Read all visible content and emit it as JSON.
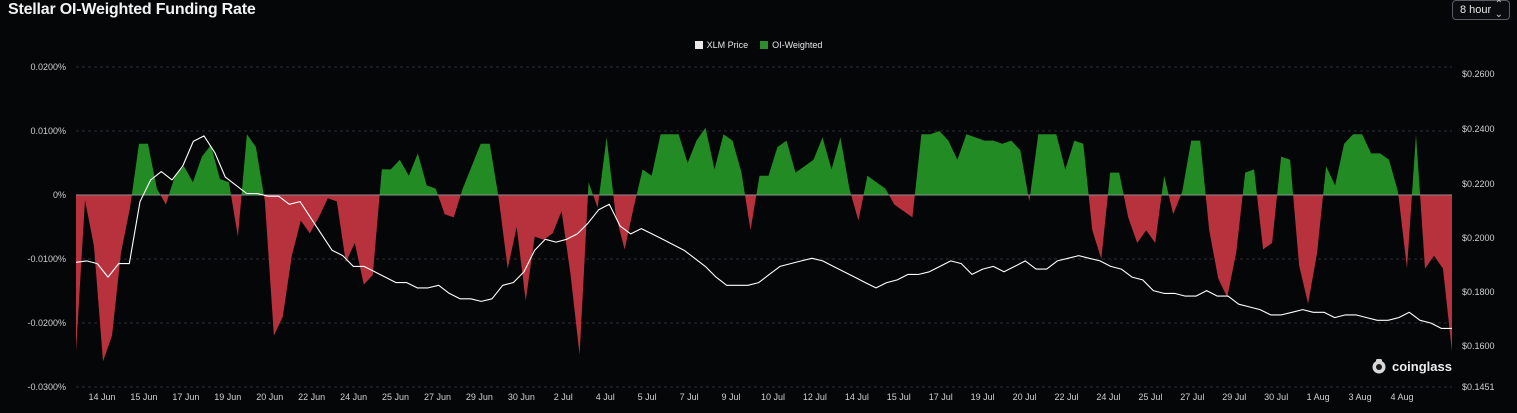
{
  "header": {
    "title": "Stellar OI-Weighted Funding Rate",
    "interval": "8 hour"
  },
  "legend": [
    {
      "label": "XLM Price",
      "color": "#e8e8e8"
    },
    {
      "label": "OI-Weighted",
      "color": "#2e8b2e"
    }
  ],
  "brand": "coinglass",
  "colors": {
    "positive": "#238b23",
    "negative": "#b8323e",
    "price_line": "#ffffff",
    "grid": "#2a2d33"
  },
  "chart_data": {
    "type": "area",
    "x_ticks": [
      "14 Jun",
      "15 Jun",
      "17 Jun",
      "19 Jun",
      "20 Jun",
      "22 Jun",
      "24 Jun",
      "25 Jun",
      "27 Jun",
      "29 Jun",
      "30 Jun",
      "2 Jul",
      "4 Jul",
      "5 Jul",
      "7 Jul",
      "9 Jul",
      "10 Jul",
      "12 Jul",
      "14 Jul",
      "15 Jul",
      "17 Jul",
      "19 Jul",
      "20 Jul",
      "22 Jul",
      "24 Jul",
      "25 Jul",
      "27 Jul",
      "29 Jul",
      "30 Jul",
      "1 Aug",
      "3 Aug",
      "4 Aug"
    ],
    "left_axis": {
      "ticks": [
        "0.0200%",
        "0.0100%",
        "0%",
        "-0.0100%",
        "-0.0200%",
        "-0.0300%"
      ],
      "ylim": [
        -0.03,
        0.02
      ]
    },
    "right_axis": {
      "ticks": [
        "$0.2600",
        "$0.2400",
        "$0.2200",
        "$0.2000",
        "$0.1800",
        "$0.1600",
        "$0.1451"
      ],
      "ylim": [
        0.1451,
        0.26
      ]
    },
    "grid": true,
    "legend_position": "top-center",
    "series": [
      {
        "name": "OI-Weighted",
        "axis": "left",
        "unit": "%",
        "values": [
          -0.0245,
          -0.0008,
          -0.008,
          -0.026,
          -0.022,
          -0.009,
          -0.002,
          0.008,
          0.008,
          0.001,
          -0.0015,
          0.003,
          0.0045,
          0.002,
          0.006,
          0.0078,
          0.0025,
          0.002,
          -0.0065,
          0.0095,
          0.0075,
          -0.001,
          -0.022,
          -0.019,
          -0.0095,
          -0.004,
          -0.006,
          -0.0035,
          -0.0005,
          -0.001,
          -0.0105,
          -0.0075,
          -0.014,
          -0.0125,
          0.004,
          0.004,
          0.0055,
          0.003,
          0.0065,
          0.0015,
          0.001,
          -0.003,
          -0.0035,
          0.001,
          0.0045,
          0.008,
          0.008,
          -0.0005,
          -0.0115,
          -0.005,
          -0.0165,
          -0.0065,
          -0.007,
          -0.006,
          -0.0025,
          -0.0125,
          -0.025,
          0.002,
          -0.002,
          0.009,
          -0.003,
          -0.0085,
          -0.002,
          0.004,
          0.003,
          0.0095,
          0.0095,
          0.0095,
          0.005,
          0.0085,
          0.0105,
          0.004,
          0.0095,
          0.0085,
          0.0035,
          -0.0055,
          0.003,
          0.003,
          0.0075,
          0.0085,
          0.0035,
          0.0045,
          0.0055,
          0.009,
          0.004,
          0.009,
          0.001,
          -0.004,
          0.003,
          0.002,
          0.001,
          -0.0015,
          -0.0025,
          -0.0035,
          0.0095,
          0.0095,
          0.01,
          0.0085,
          0.0055,
          0.0095,
          0.009,
          0.0085,
          0.0085,
          0.008,
          0.0085,
          0.007,
          -0.001,
          0.0095,
          0.0095,
          0.0095,
          0.004,
          0.0085,
          0.008,
          -0.0055,
          -0.01,
          0.0035,
          0.0035,
          -0.0035,
          -0.0075,
          -0.0055,
          -0.0075,
          0.003,
          -0.003,
          0.0005,
          0.0085,
          0.0085,
          -0.0055,
          -0.013,
          -0.016,
          -0.009,
          0.0035,
          0.004,
          -0.0085,
          -0.0075,
          0.006,
          0.0055,
          -0.011,
          -0.017,
          -0.009,
          0.0045,
          0.0015,
          0.008,
          0.0095,
          0.0095,
          0.0065,
          0.0065,
          0.0055,
          0.0005,
          -0.0115,
          0.0095,
          -0.0115,
          -0.0095,
          -0.0115,
          -0.0245
        ]
      },
      {
        "name": "XLM Price",
        "axis": "right",
        "unit": "$",
        "values": [
          0.191,
          0.1915,
          0.1905,
          0.1855,
          0.1905,
          0.1905,
          0.2135,
          0.2215,
          0.2245,
          0.2215,
          0.2265,
          0.2355,
          0.2375,
          0.2315,
          0.2225,
          0.2195,
          0.2165,
          0.2165,
          0.2155,
          0.2155,
          0.2125,
          0.2135,
          0.2075,
          0.2015,
          0.1955,
          0.1935,
          0.1895,
          0.1895,
          0.1875,
          0.1855,
          0.1835,
          0.1835,
          0.1815,
          0.1815,
          0.1825,
          0.1795,
          0.1775,
          0.1775,
          0.1765,
          0.1775,
          0.1825,
          0.1835,
          0.1875,
          0.1955,
          0.1995,
          0.1985,
          0.1995,
          0.2015,
          0.2055,
          0.2105,
          0.2125,
          0.2045,
          0.2015,
          0.2035,
          0.2015,
          0.1995,
          0.1975,
          0.1955,
          0.1925,
          0.1895,
          0.1855,
          0.1825,
          0.1825,
          0.1825,
          0.1835,
          0.1865,
          0.1895,
          0.1905,
          0.1915,
          0.1925,
          0.1915,
          0.1895,
          0.1875,
          0.1855,
          0.1835,
          0.1815,
          0.1835,
          0.1845,
          0.1865,
          0.1865,
          0.1875,
          0.1895,
          0.1915,
          0.1905,
          0.1865,
          0.1885,
          0.1895,
          0.1875,
          0.1895,
          0.1915,
          0.1885,
          0.1885,
          0.1915,
          0.1925,
          0.1935,
          0.1925,
          0.1915,
          0.1895,
          0.1885,
          0.1855,
          0.1845,
          0.1805,
          0.1795,
          0.1795,
          0.1785,
          0.1785,
          0.1805,
          0.1785,
          0.1785,
          0.1755,
          0.1745,
          0.1735,
          0.1715,
          0.1715,
          0.1725,
          0.1735,
          0.1725,
          0.1725,
          0.1705,
          0.1715,
          0.1715,
          0.1705,
          0.1695,
          0.1695,
          0.1705,
          0.1725,
          0.1695,
          0.1685,
          0.1665,
          0.1665
        ]
      }
    ]
  }
}
